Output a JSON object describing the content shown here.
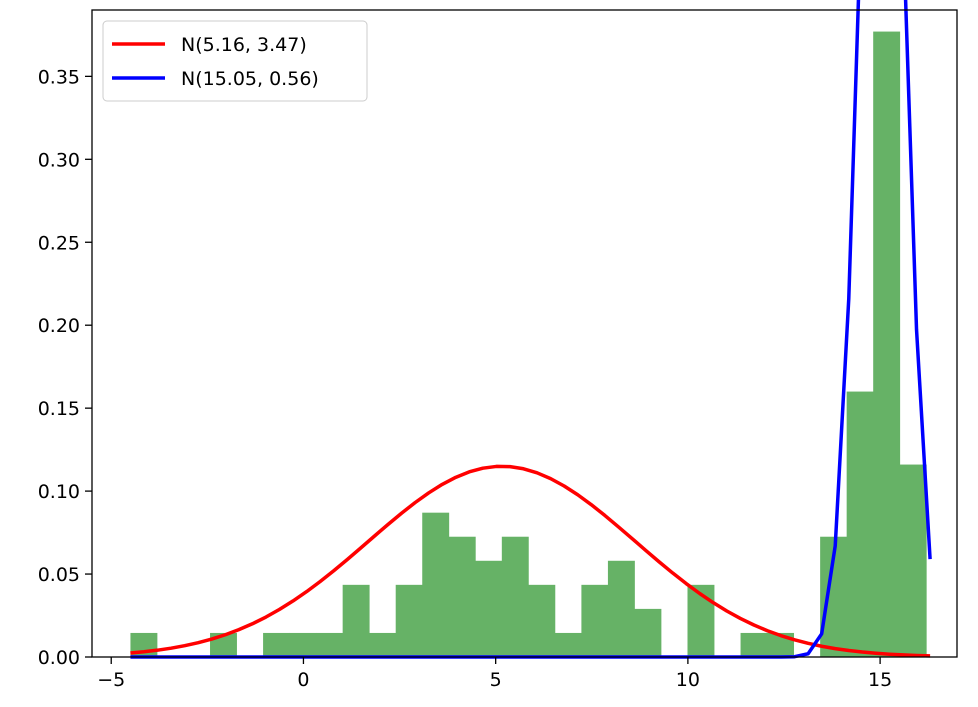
{
  "chart_data": {
    "type": "bar",
    "title": "",
    "xlabel": "",
    "ylabel": "",
    "xlim": [
      -5.5,
      17.0
    ],
    "ylim": [
      0.0,
      0.39
    ],
    "grid": false,
    "legend_position": "top-left",
    "x_ticks": [
      -5,
      0,
      5,
      10,
      15
    ],
    "x_tick_labels": [
      "−5",
      "0",
      "5",
      "10",
      "15"
    ],
    "y_ticks": [
      0.0,
      0.05,
      0.1,
      0.15,
      0.2,
      0.25,
      0.3,
      0.35
    ],
    "y_tick_labels": [
      "0.00",
      "0.05",
      "0.10",
      "0.15",
      "0.20",
      "0.25",
      "0.30",
      "0.35"
    ],
    "histogram": {
      "name": "histogram",
      "color": "#66b266",
      "bin_start": -4.5,
      "bin_width": 0.69,
      "densities": [
        0.0145,
        0,
        0,
        0.0145,
        0,
        0.0145,
        0.0145,
        0.0145,
        0.0435,
        0.0145,
        0.0435,
        0.087,
        0.0725,
        0.058,
        0.0725,
        0.0435,
        0.0145,
        0.0435,
        0.058,
        0.029,
        0,
        0.0435,
        0,
        0.0145,
        0.0145,
        0,
        0.0725,
        0.16,
        0.377,
        0.116
      ]
    },
    "series": [
      {
        "name": "N(5.16, 3.47)",
        "color": "#ff0000",
        "type": "normal_pdf",
        "mean": 5.16,
        "std": 3.47,
        "x_range": [
          -4.5,
          16.3
        ]
      },
      {
        "name": "N(15.05, 0.56)",
        "color": "#0000ff",
        "type": "normal_pdf",
        "mean": 15.05,
        "std": 0.56,
        "x_range": [
          -4.5,
          16.3
        ]
      }
    ]
  }
}
